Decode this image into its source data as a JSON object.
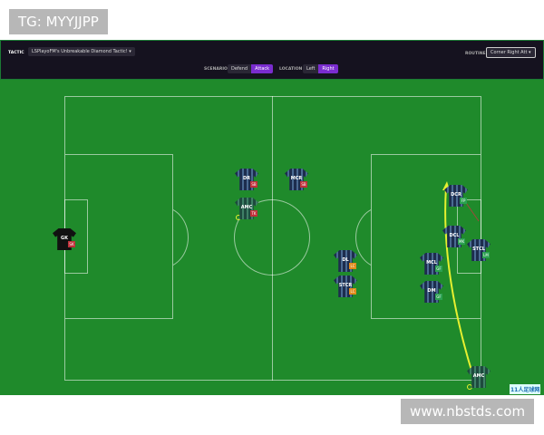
{
  "watermark_top": "TG: MYYJJPP",
  "watermark_bottom": "www.nbstds.com",
  "header": {
    "tactic_label": "TACTIC",
    "tactic_value": "LSPlayoFM's Unbreakable Diamond Tactic!",
    "routine_label": "ROUTINE",
    "routine_value": "Corner Right Att",
    "scenario_label": "SCENARIO",
    "scenario_options": [
      "Defend",
      "Attack"
    ],
    "scenario_selected": "Attack",
    "location_label": "LOCATION",
    "location_options": [
      "Left",
      "Right"
    ],
    "location_selected": "Right"
  },
  "accent_color": "#7a2ccf",
  "pitch_color": "#1f8a2b",
  "players": [
    {
      "pos": "GK",
      "badge": "SK",
      "badge_color": "#c0303a",
      "kit": "goalkeeper"
    },
    {
      "pos": "DR",
      "badge": "SB",
      "badge_color": "#c0303a"
    },
    {
      "pos": "MCR",
      "badge": "SB",
      "badge_color": "#c0303a"
    },
    {
      "pos": "AMC",
      "badge": "TK",
      "badge_color": "#c0303a",
      "kit": "taker"
    },
    {
      "pos": "DL",
      "badge": "LC",
      "badge_color": "#e08a1a"
    },
    {
      "pos": "STCR",
      "badge": "LC",
      "badge_color": "#e08a1a"
    },
    {
      "pos": "DCR",
      "badge": "FP",
      "badge_color": "#2aa050"
    },
    {
      "pos": "DCL",
      "badge": "MK",
      "badge_color": "#2aa050"
    },
    {
      "pos": "STCL",
      "badge": "LM",
      "badge_color": "#2aa050"
    },
    {
      "pos": "MCL",
      "badge": "GF",
      "badge_color": "#2aa050"
    },
    {
      "pos": "DM",
      "badge": "GF",
      "badge_color": "#2aa050"
    },
    {
      "pos": "AMC",
      "badge": "",
      "badge_color": "",
      "kit": "taker"
    }
  ],
  "logo_text": "11人足球网"
}
